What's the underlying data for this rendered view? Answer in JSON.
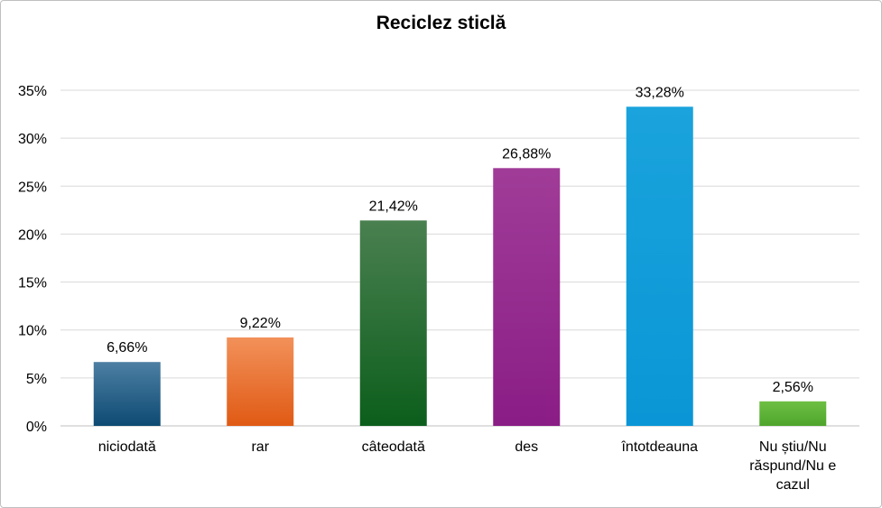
{
  "chart_data": {
    "type": "bar",
    "title": "Reciclez sticlă",
    "xlabel": "",
    "ylabel": "",
    "categories": [
      "niciodată",
      "rar",
      "câteodată",
      "des",
      "întotdeauna",
      "Nu știu/Nu răspund/Nu e cazul"
    ],
    "category_lines": [
      [
        "niciodată"
      ],
      [
        "rar"
      ],
      [
        "câteodată"
      ],
      [
        "des"
      ],
      [
        "întotdeauna"
      ],
      [
        "Nu știu/Nu",
        "răspund/Nu e",
        "cazul"
      ]
    ],
    "values": [
      6.66,
      9.22,
      21.42,
      26.88,
      33.28,
      2.56
    ],
    "data_labels": [
      "6,66%",
      "9,22%",
      "21,42%",
      "26,88%",
      "33,28%",
      "2,56%"
    ],
    "ylim": [
      0,
      35
    ],
    "yticks": [
      0,
      5,
      10,
      15,
      20,
      25,
      30,
      35
    ],
    "ytick_labels": [
      "0%",
      "5%",
      "10%",
      "15%",
      "20%",
      "25%",
      "30%",
      "35%"
    ],
    "grid": true,
    "legend": "none",
    "bar_colors": [
      [
        "#4d7fa3",
        "#0d4a73"
      ],
      [
        "#f2915a",
        "#e05a14"
      ],
      [
        "#4a8050",
        "#0c5e1c"
      ],
      [
        "#a03c98",
        "#8a1d86"
      ],
      [
        "#1aa3dc",
        "#0a96d6"
      ],
      [
        "#6ec043",
        "#4ea52c"
      ]
    ]
  }
}
